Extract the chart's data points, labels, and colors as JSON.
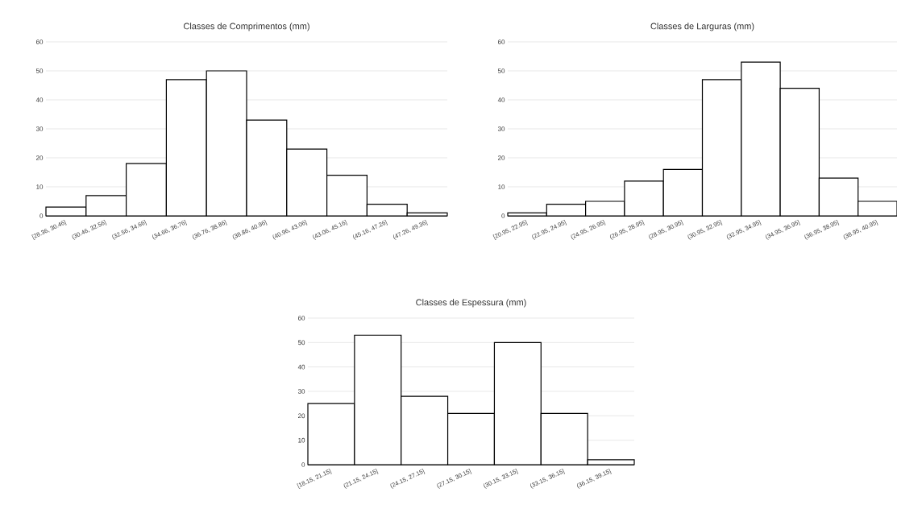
{
  "chart_data": [
    {
      "type": "bar",
      "title": "Classes de Comprimentos (mm)",
      "categories": [
        "[28.36, 30.46]",
        "(30.46, 32.56]",
        "(32.56, 34.66]",
        "(34.66, 36.76]",
        "(36.76, 38.86]",
        "(38.86, 40.96]",
        "(40.96, 43.06]",
        "(43.06, 45.16]",
        "(45.16, 47.26]",
        "(47.26, 49.36]"
      ],
      "values": [
        3,
        7,
        18,
        47,
        50,
        33,
        23,
        14,
        4,
        1
      ],
      "color": "#ffffff",
      "ylim": [
        0,
        60
      ],
      "yticks": [
        0,
        10,
        20,
        30,
        40,
        50,
        60
      ],
      "grid": "y"
    },
    {
      "type": "bar",
      "title": "Classes de Larguras (mm)",
      "categories": [
        "[20.95, 22.95]",
        "(22.95, 24.95]",
        "(24.95, 26.95]",
        "(26.95, 28.95]",
        "(28.95, 30.95]",
        "(30.95, 32.95]",
        "(32.95, 34.95]",
        "(34.95, 36.95]",
        "(36.95, 38.95]",
        "(38.95, 40.95]"
      ],
      "values": [
        1,
        4,
        5,
        12,
        16,
        47,
        53,
        44,
        13,
        5
      ],
      "color": "#ffffff",
      "ylim": [
        0,
        60
      ],
      "yticks": [
        0,
        10,
        20,
        30,
        40,
        50,
        60
      ],
      "grid": "y"
    },
    {
      "type": "bar",
      "title": "Classes de Espessura (mm)",
      "categories": [
        "[18.15, 21.15]",
        "(21.15, 24.15]",
        "(24.15, 27.15]",
        "(27.15, 30.15]",
        "(30.15, 33.15]",
        "(33.15, 36.15]",
        "(36.15, 39.15]"
      ],
      "values": [
        25,
        53,
        28,
        21,
        50,
        21,
        2
      ],
      "color": "#ffffff",
      "ylim": [
        0,
        60
      ],
      "yticks": [
        0,
        10,
        20,
        30,
        40,
        50,
        60
      ],
      "grid": "y"
    }
  ]
}
